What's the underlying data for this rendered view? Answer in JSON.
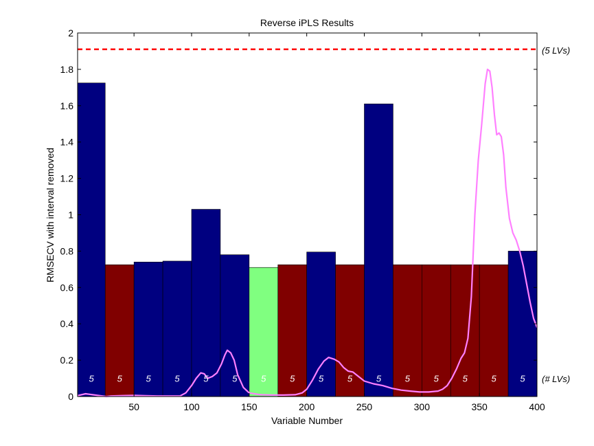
{
  "chart_data": {
    "type": "bar",
    "title": "Reverse iPLS Results",
    "xlabel": "Variable Number",
    "ylabel": "RMSECV with interval removed",
    "xlim": [
      1,
      400
    ],
    "ylim": [
      0,
      2
    ],
    "grid": false,
    "xticks": [
      50,
      100,
      150,
      200,
      250,
      300,
      350,
      400
    ],
    "xtick_labels": [
      "50",
      "100",
      "150",
      "200",
      "250",
      "300",
      "350",
      "400"
    ],
    "yticks": [
      0,
      0.2,
      0.4,
      0.6,
      0.8,
      1,
      1.2,
      1.4,
      1.6,
      1.8,
      2
    ],
    "ytick_labels": [
      "0",
      "0.2",
      "0.4",
      "0.6",
      "0.8",
      "1",
      "1.2",
      "1.4",
      "1.6",
      "1.8",
      "2"
    ],
    "bar_colors": {
      "retained": "#000080",
      "removed": "#800000",
      "selected": "#80ff80"
    },
    "intervals": [
      {
        "start": 1,
        "end": 25,
        "value": 1.725,
        "lvs": "5",
        "status": "retained"
      },
      {
        "start": 26,
        "end": 50,
        "value": 0.725,
        "lvs": "5",
        "status": "removed"
      },
      {
        "start": 51,
        "end": 75,
        "value": 0.74,
        "lvs": "5",
        "status": "retained"
      },
      {
        "start": 76,
        "end": 100,
        "value": 0.745,
        "lvs": "5",
        "status": "retained"
      },
      {
        "start": 101,
        "end": 125,
        "value": 1.03,
        "lvs": "5",
        "status": "retained"
      },
      {
        "start": 126,
        "end": 150,
        "value": 0.78,
        "lvs": "5",
        "status": "retained"
      },
      {
        "start": 151,
        "end": 175,
        "value": 0.71,
        "lvs": "5",
        "status": "selected"
      },
      {
        "start": 176,
        "end": 200,
        "value": 0.725,
        "lvs": "5",
        "status": "removed"
      },
      {
        "start": 201,
        "end": 225,
        "value": 0.795,
        "lvs": "5",
        "status": "retained"
      },
      {
        "start": 226,
        "end": 250,
        "value": 0.725,
        "lvs": "5",
        "status": "removed"
      },
      {
        "start": 251,
        "end": 275,
        "value": 1.61,
        "lvs": "5",
        "status": "retained"
      },
      {
        "start": 276,
        "end": 300,
        "value": 0.725,
        "lvs": "5",
        "status": "removed"
      },
      {
        "start": 301,
        "end": 325,
        "value": 0.725,
        "lvs": "5",
        "status": "removed"
      },
      {
        "start": 326,
        "end": 350,
        "value": 0.725,
        "lvs": "5",
        "status": "removed"
      },
      {
        "start": 351,
        "end": 375,
        "value": 0.725,
        "lvs": "5",
        "status": "removed"
      },
      {
        "start": 376,
        "end": 400,
        "value": 0.8,
        "lvs": "5",
        "status": "retained"
      }
    ],
    "lv_label_y": 0.1,
    "reference_line": {
      "value": 1.91,
      "label": "(5 LVs)",
      "color": "#ff0000"
    },
    "lv_axis_label": "(# LVs)",
    "spectrum": {
      "color": "#ff80ff",
      "x": [
        1,
        8,
        14,
        20,
        26,
        30,
        40,
        50,
        60,
        70,
        80,
        90,
        95,
        100,
        104,
        108,
        111,
        114,
        118,
        122,
        126,
        129,
        131,
        134,
        137,
        140,
        145,
        150,
        160,
        170,
        180,
        190,
        196,
        200,
        205,
        210,
        215,
        219,
        224,
        228,
        232,
        236,
        240,
        245,
        250,
        258,
        266,
        274,
        282,
        290,
        298,
        306,
        314,
        318,
        322,
        326,
        330,
        334,
        337,
        340,
        343,
        346,
        349,
        352,
        355,
        357,
        359,
        361,
        363,
        365,
        367,
        369,
        371,
        373,
        376,
        379,
        382,
        385,
        388,
        391,
        394,
        397,
        400
      ],
      "y": [
        0.005,
        0.015,
        0.01,
        0.005,
        0.0,
        0.003,
        0.005,
        0.006,
        0.004,
        0.003,
        0.003,
        0.003,
        0.02,
        0.06,
        0.1,
        0.13,
        0.125,
        0.1,
        0.11,
        0.13,
        0.18,
        0.23,
        0.255,
        0.24,
        0.2,
        0.12,
        0.05,
        0.02,
        0.01,
        0.008,
        0.008,
        0.01,
        0.02,
        0.04,
        0.09,
        0.15,
        0.195,
        0.215,
        0.205,
        0.19,
        0.16,
        0.14,
        0.135,
        0.11,
        0.085,
        0.07,
        0.06,
        0.045,
        0.035,
        0.03,
        0.025,
        0.025,
        0.03,
        0.04,
        0.06,
        0.1,
        0.15,
        0.21,
        0.24,
        0.32,
        0.55,
        1.0,
        1.3,
        1.5,
        1.72,
        1.8,
        1.79,
        1.7,
        1.55,
        1.44,
        1.45,
        1.43,
        1.33,
        1.15,
        0.98,
        0.9,
        0.86,
        0.8,
        0.72,
        0.62,
        0.52,
        0.43,
        0.38
      ]
    }
  }
}
